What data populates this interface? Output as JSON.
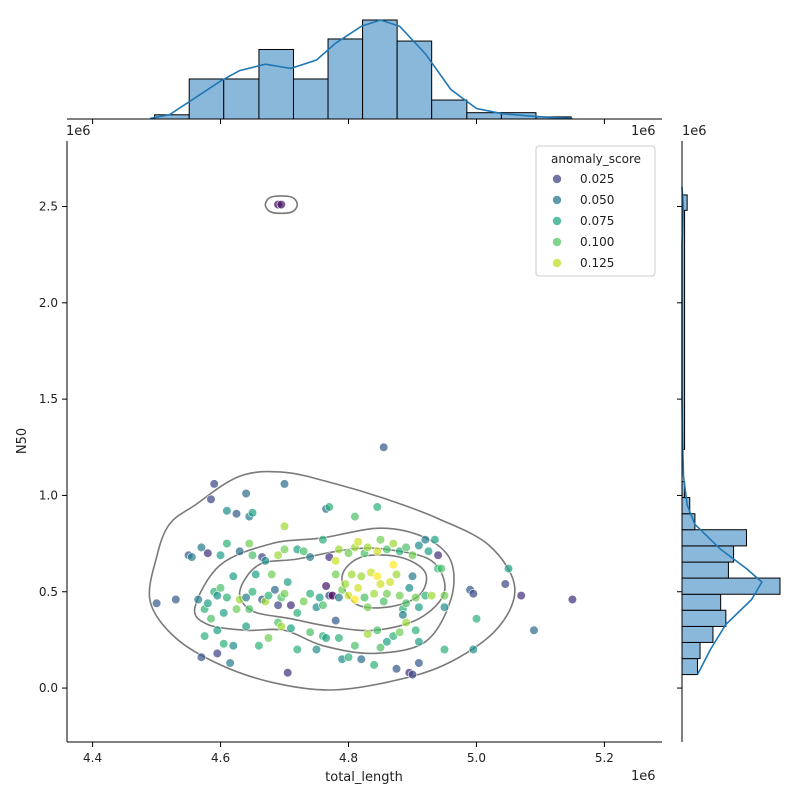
{
  "chart_data": {
    "type": "scatter",
    "xlabel": "total_length",
    "ylabel": "N50",
    "x_offset_label": "1e6",
    "y_offset_label": "1e6",
    "xlim": [
      4.36,
      5.29
    ],
    "ylim": [
      -0.28,
      2.84
    ],
    "x_ticks": [
      4.4,
      4.6,
      4.8,
      5.0,
      5.2
    ],
    "x_tick_labels": [
      "4.4",
      "4.6",
      "4.8",
      "5.0",
      "5.2"
    ],
    "y_ticks": [
      0.0,
      0.5,
      1.0,
      1.5,
      2.0,
      2.5
    ],
    "y_tick_labels": [
      "0.0",
      "0.5",
      "1.0",
      "1.5",
      "2.0",
      "2.5"
    ],
    "legend": {
      "title": "anomaly_score",
      "placement": "top-right",
      "entries": [
        {
          "label": "0.025",
          "color": "#414487"
        },
        {
          "label": "0.050",
          "color": "#2a788e"
        },
        {
          "label": "0.075",
          "color": "#22a884"
        },
        {
          "label": "0.100",
          "color": "#54c568"
        },
        {
          "label": "0.125",
          "color": "#bddf26"
        }
      ]
    },
    "colormap": "viridis",
    "score_range": [
      0.0,
      0.14
    ],
    "points": [
      [
        4.69,
        2.51,
        0.0
      ],
      [
        4.695,
        2.51,
        0.01
      ],
      [
        4.855,
        1.25,
        0.04
      ],
      [
        4.7,
        1.06,
        0.05
      ],
      [
        4.59,
        1.06,
        0.03
      ],
      [
        4.585,
        0.98,
        0.03
      ],
      [
        4.64,
        1.01,
        0.05
      ],
      [
        4.61,
        0.92,
        0.07
      ],
      [
        4.625,
        0.905,
        0.04
      ],
      [
        4.645,
        0.89,
        0.06
      ],
      [
        4.65,
        0.91,
        0.08
      ],
      [
        4.765,
        0.93,
        0.05
      ],
      [
        4.77,
        0.94,
        0.09
      ],
      [
        4.81,
        0.89,
        0.1
      ],
      [
        4.845,
        0.94,
        0.09
      ],
      [
        4.7,
        0.84,
        0.12
      ],
      [
        4.55,
        0.69,
        0.04
      ],
      [
        4.555,
        0.68,
        0.06
      ],
      [
        4.57,
        0.73,
        0.06
      ],
      [
        4.58,
        0.7,
        0.02
      ],
      [
        4.6,
        0.69,
        0.08
      ],
      [
        4.61,
        0.75,
        0.09
      ],
      [
        4.63,
        0.71,
        0.05
      ],
      [
        4.645,
        0.75,
        0.11
      ],
      [
        4.65,
        0.69,
        0.1
      ],
      [
        4.665,
        0.68,
        0.03
      ],
      [
        4.67,
        0.66,
        0.07
      ],
      [
        4.69,
        0.69,
        0.12
      ],
      [
        4.7,
        0.72,
        0.11
      ],
      [
        4.72,
        0.72,
        0.08
      ],
      [
        4.73,
        0.71,
        0.1
      ],
      [
        4.74,
        0.68,
        0.06
      ],
      [
        4.76,
        0.77,
        0.09
      ],
      [
        4.77,
        0.68,
        0.02
      ],
      [
        4.78,
        0.66,
        0.13
      ],
      [
        4.785,
        0.72,
        0.12
      ],
      [
        4.8,
        0.7,
        0.11
      ],
      [
        4.81,
        0.73,
        0.12
      ],
      [
        4.815,
        0.76,
        0.13
      ],
      [
        4.825,
        0.7,
        0.1
      ],
      [
        4.83,
        0.73,
        0.12
      ],
      [
        4.845,
        0.71,
        0.13
      ],
      [
        4.85,
        0.77,
        0.11
      ],
      [
        4.86,
        0.72,
        0.1
      ],
      [
        4.87,
        0.75,
        0.12
      ],
      [
        4.88,
        0.71,
        0.09
      ],
      [
        4.89,
        0.73,
        0.1
      ],
      [
        4.9,
        0.69,
        0.11
      ],
      [
        4.91,
        0.74,
        0.07
      ],
      [
        4.92,
        0.77,
        0.06
      ],
      [
        4.925,
        0.71,
        0.08
      ],
      [
        4.935,
        0.77,
        0.08
      ],
      [
        4.94,
        0.69,
        0.02
      ],
      [
        4.565,
        0.46,
        0.06
      ],
      [
        4.575,
        0.41,
        0.09
      ],
      [
        4.58,
        0.44,
        0.08
      ],
      [
        4.585,
        0.36,
        0.1
      ],
      [
        4.59,
        0.5,
        0.09
      ],
      [
        4.595,
        0.48,
        0.07
      ],
      [
        4.6,
        0.52,
        0.1
      ],
      [
        4.605,
        0.39,
        0.08
      ],
      [
        4.61,
        0.47,
        0.09
      ],
      [
        4.62,
        0.58,
        0.08
      ],
      [
        4.625,
        0.41,
        0.11
      ],
      [
        4.63,
        0.46,
        0.12
      ],
      [
        4.64,
        0.47,
        0.06
      ],
      [
        4.645,
        0.41,
        0.1
      ],
      [
        4.65,
        0.5,
        0.09
      ],
      [
        4.655,
        0.59,
        0.08
      ],
      [
        4.665,
        0.46,
        0.04
      ],
      [
        4.67,
        0.45,
        0.12
      ],
      [
        4.675,
        0.48,
        0.09
      ],
      [
        4.68,
        0.59,
        0.11
      ],
      [
        4.685,
        0.51,
        0.05
      ],
      [
        4.69,
        0.43,
        0.03
      ],
      [
        4.695,
        0.47,
        0.1
      ],
      [
        4.7,
        0.49,
        0.11
      ],
      [
        4.705,
        0.55,
        0.08
      ],
      [
        4.71,
        0.43,
        0.02
      ],
      [
        4.72,
        0.39,
        0.09
      ],
      [
        4.73,
        0.45,
        0.11
      ],
      [
        4.74,
        0.49,
        0.09
      ],
      [
        4.75,
        0.42,
        0.07
      ],
      [
        4.755,
        0.47,
        0.08
      ],
      [
        4.76,
        0.43,
        0.1
      ],
      [
        4.765,
        0.53,
        0.01
      ],
      [
        4.77,
        0.48,
        0.03
      ],
      [
        4.775,
        0.48,
        0.0
      ],
      [
        4.78,
        0.59,
        0.11
      ],
      [
        4.785,
        0.47,
        0.06
      ],
      [
        4.79,
        0.51,
        0.11
      ],
      [
        4.795,
        0.54,
        0.12
      ],
      [
        4.8,
        0.48,
        0.13
      ],
      [
        4.805,
        0.59,
        0.12
      ],
      [
        4.81,
        0.46,
        0.14
      ],
      [
        4.815,
        0.52,
        0.13
      ],
      [
        4.82,
        0.58,
        0.12
      ],
      [
        4.825,
        0.47,
        0.1
      ],
      [
        4.83,
        0.42,
        0.11
      ],
      [
        4.835,
        0.6,
        0.13
      ],
      [
        4.84,
        0.49,
        0.12
      ],
      [
        4.845,
        0.58,
        0.14
      ],
      [
        4.85,
        0.54,
        0.13
      ],
      [
        4.855,
        0.45,
        0.1
      ],
      [
        4.86,
        0.49,
        0.11
      ],
      [
        4.865,
        0.55,
        0.13
      ],
      [
        4.87,
        0.64,
        0.14
      ],
      [
        4.875,
        0.59,
        0.12
      ],
      [
        4.88,
        0.48,
        0.11
      ],
      [
        4.885,
        0.41,
        0.09
      ],
      [
        4.89,
        0.44,
        0.1
      ],
      [
        4.895,
        0.52,
        0.07
      ],
      [
        4.9,
        0.58,
        0.06
      ],
      [
        4.905,
        0.47,
        0.11
      ],
      [
        4.91,
        0.42,
        0.08
      ],
      [
        4.92,
        0.48,
        0.09
      ],
      [
        4.93,
        0.48,
        0.12
      ],
      [
        4.94,
        0.62,
        0.09
      ],
      [
        4.945,
        0.62,
        0.1
      ],
      [
        4.95,
        0.48,
        0.11
      ],
      [
        4.95,
        0.42,
        0.07
      ],
      [
        4.99,
        0.51,
        0.04
      ],
      [
        4.995,
        0.49,
        0.03
      ],
      [
        4.5,
        0.44,
        0.04
      ],
      [
        4.53,
        0.46,
        0.04
      ],
      [
        5.05,
        0.62,
        0.08
      ],
      [
        5.045,
        0.54,
        0.03
      ],
      [
        5.07,
        0.48,
        0.02
      ],
      [
        5.09,
        0.3,
        0.05
      ],
      [
        5.15,
        0.46,
        0.02
      ],
      [
        5.0,
        0.36,
        0.09
      ],
      [
        4.575,
        0.27,
        0.09
      ],
      [
        4.595,
        0.3,
        0.08
      ],
      [
        4.605,
        0.23,
        0.09
      ],
      [
        4.62,
        0.22,
        0.07
      ],
      [
        4.57,
        0.16,
        0.04
      ],
      [
        4.595,
        0.18,
        0.03
      ],
      [
        4.615,
        0.13,
        0.06
      ],
      [
        4.64,
        0.32,
        0.08
      ],
      [
        4.66,
        0.22,
        0.09
      ],
      [
        4.675,
        0.26,
        0.11
      ],
      [
        4.69,
        0.34,
        0.1
      ],
      [
        4.695,
        0.32,
        0.12
      ],
      [
        4.705,
        0.08,
        0.02
      ],
      [
        4.71,
        0.31,
        0.08
      ],
      [
        4.72,
        0.2,
        0.09
      ],
      [
        4.74,
        0.29,
        0.1
      ],
      [
        4.75,
        0.2,
        0.07
      ],
      [
        4.76,
        0.27,
        0.09
      ],
      [
        4.765,
        0.26,
        0.08
      ],
      [
        4.78,
        0.35,
        0.04
      ],
      [
        4.785,
        0.26,
        0.09
      ],
      [
        4.79,
        0.15,
        0.07
      ],
      [
        4.8,
        0.16,
        0.09
      ],
      [
        4.81,
        0.22,
        0.1
      ],
      [
        4.82,
        0.15,
        0.05
      ],
      [
        4.83,
        0.28,
        0.12
      ],
      [
        4.84,
        0.12,
        0.09
      ],
      [
        4.845,
        0.3,
        0.1
      ],
      [
        4.85,
        0.21,
        0.1
      ],
      [
        4.86,
        0.24,
        0.08
      ],
      [
        4.87,
        0.27,
        0.09
      ],
      [
        4.875,
        0.1,
        0.04
      ],
      [
        4.88,
        0.29,
        0.11
      ],
      [
        4.885,
        0.38,
        0.06
      ],
      [
        4.89,
        0.34,
        0.12
      ],
      [
        4.895,
        0.08,
        0.02
      ],
      [
        4.9,
        0.07,
        0.03
      ],
      [
        4.905,
        0.3,
        0.09
      ],
      [
        4.91,
        0.13,
        0.04
      ],
      [
        4.91,
        0.24,
        0.08
      ],
      [
        4.95,
        0.2,
        0.09
      ],
      [
        4.995,
        0.2,
        0.07
      ]
    ],
    "kde_contours": [
      [
        [
          4.56,
          0.95
        ],
        [
          4.63,
          1.1
        ],
        [
          4.7,
          1.12
        ],
        [
          4.78,
          1.06
        ],
        [
          4.86,
          0.98
        ],
        [
          4.94,
          0.88
        ],
        [
          5.02,
          0.74
        ],
        [
          5.06,
          0.52
        ],
        [
          5.03,
          0.3
        ],
        [
          4.95,
          0.12
        ],
        [
          4.86,
          0.03
        ],
        [
          4.77,
          -0.01
        ],
        [
          4.68,
          0.03
        ],
        [
          4.6,
          0.12
        ],
        [
          4.53,
          0.26
        ],
        [
          4.49,
          0.45
        ],
        [
          4.5,
          0.68
        ],
        [
          4.52,
          0.85
        ]
      ],
      [
        [
          4.56,
          0.42
        ],
        [
          4.6,
          0.64
        ],
        [
          4.68,
          0.75
        ],
        [
          4.76,
          0.78
        ],
        [
          4.85,
          0.83
        ],
        [
          4.92,
          0.78
        ],
        [
          4.96,
          0.66
        ],
        [
          4.96,
          0.46
        ],
        [
          4.92,
          0.24
        ],
        [
          4.84,
          0.18
        ],
        [
          4.76,
          0.22
        ],
        [
          4.7,
          0.3
        ],
        [
          4.64,
          0.3
        ],
        [
          4.58,
          0.33
        ]
      ],
      [
        [
          4.63,
          0.5
        ],
        [
          4.66,
          0.64
        ],
        [
          4.72,
          0.67
        ],
        [
          4.8,
          0.72
        ],
        [
          4.86,
          0.72
        ],
        [
          4.93,
          0.66
        ],
        [
          4.95,
          0.5
        ],
        [
          4.91,
          0.36
        ],
        [
          4.84,
          0.3
        ],
        [
          4.77,
          0.32
        ],
        [
          4.71,
          0.36
        ],
        [
          4.65,
          0.4
        ]
      ],
      [
        [
          4.79,
          0.58
        ],
        [
          4.82,
          0.68
        ],
        [
          4.88,
          0.68
        ],
        [
          4.92,
          0.6
        ],
        [
          4.91,
          0.48
        ],
        [
          4.86,
          0.42
        ],
        [
          4.81,
          0.44
        ]
      ],
      [
        [
          4.67,
          2.51
        ],
        [
          4.68,
          2.55
        ],
        [
          4.71,
          2.55
        ],
        [
          4.72,
          2.51
        ],
        [
          4.71,
          2.47
        ],
        [
          4.68,
          2.47
        ]
      ]
    ],
    "marginal_x": {
      "bin_edges": [
        4.497,
        4.551,
        4.605,
        4.66,
        4.714,
        4.768,
        4.822,
        4.876,
        4.93,
        4.985,
        5.039,
        5.093,
        5.148
      ],
      "counts": [
        2,
        19,
        19,
        33,
        19,
        38,
        47,
        37,
        9,
        3,
        3,
        1
      ],
      "kde": [
        [
          4.49,
          0.3
        ],
        [
          4.52,
          2
        ],
        [
          4.56,
          10
        ],
        [
          4.6,
          18
        ],
        [
          4.63,
          23
        ],
        [
          4.67,
          26
        ],
        [
          4.71,
          24
        ],
        [
          4.75,
          28
        ],
        [
          4.78,
          36
        ],
        [
          4.82,
          44
        ],
        [
          4.85,
          47
        ],
        [
          4.88,
          44
        ],
        [
          4.92,
          31
        ],
        [
          4.96,
          14
        ],
        [
          5.0,
          5
        ],
        [
          5.04,
          2.5
        ],
        [
          5.08,
          1.5
        ],
        [
          5.12,
          0.6
        ],
        [
          5.15,
          0.2
        ]
      ]
    },
    "marginal_y": {
      "bin_edges": [
        0.07,
        0.153,
        0.237,
        0.32,
        0.404,
        0.487,
        0.571,
        0.654,
        0.738,
        0.822,
        0.905,
        0.989,
        1.072,
        1.156,
        1.239,
        2.48,
        2.56
      ],
      "counts": [
        6,
        7,
        12,
        17,
        15,
        38,
        18,
        20,
        25,
        5,
        3,
        1,
        0,
        0,
        1,
        2
      ],
      "kde": [
        [
          0.07,
          6
        ],
        [
          0.2,
          11
        ],
        [
          0.33,
          17
        ],
        [
          0.46,
          27
        ],
        [
          0.55,
          31
        ],
        [
          0.62,
          25
        ],
        [
          0.72,
          15
        ],
        [
          0.85,
          5
        ],
        [
          0.95,
          2
        ],
        [
          1.1,
          0.6
        ],
        [
          1.3,
          0.2
        ],
        [
          1.5,
          0
        ],
        [
          2.3,
          0
        ],
        [
          2.5,
          0.5
        ],
        [
          2.6,
          0
        ]
      ]
    }
  }
}
